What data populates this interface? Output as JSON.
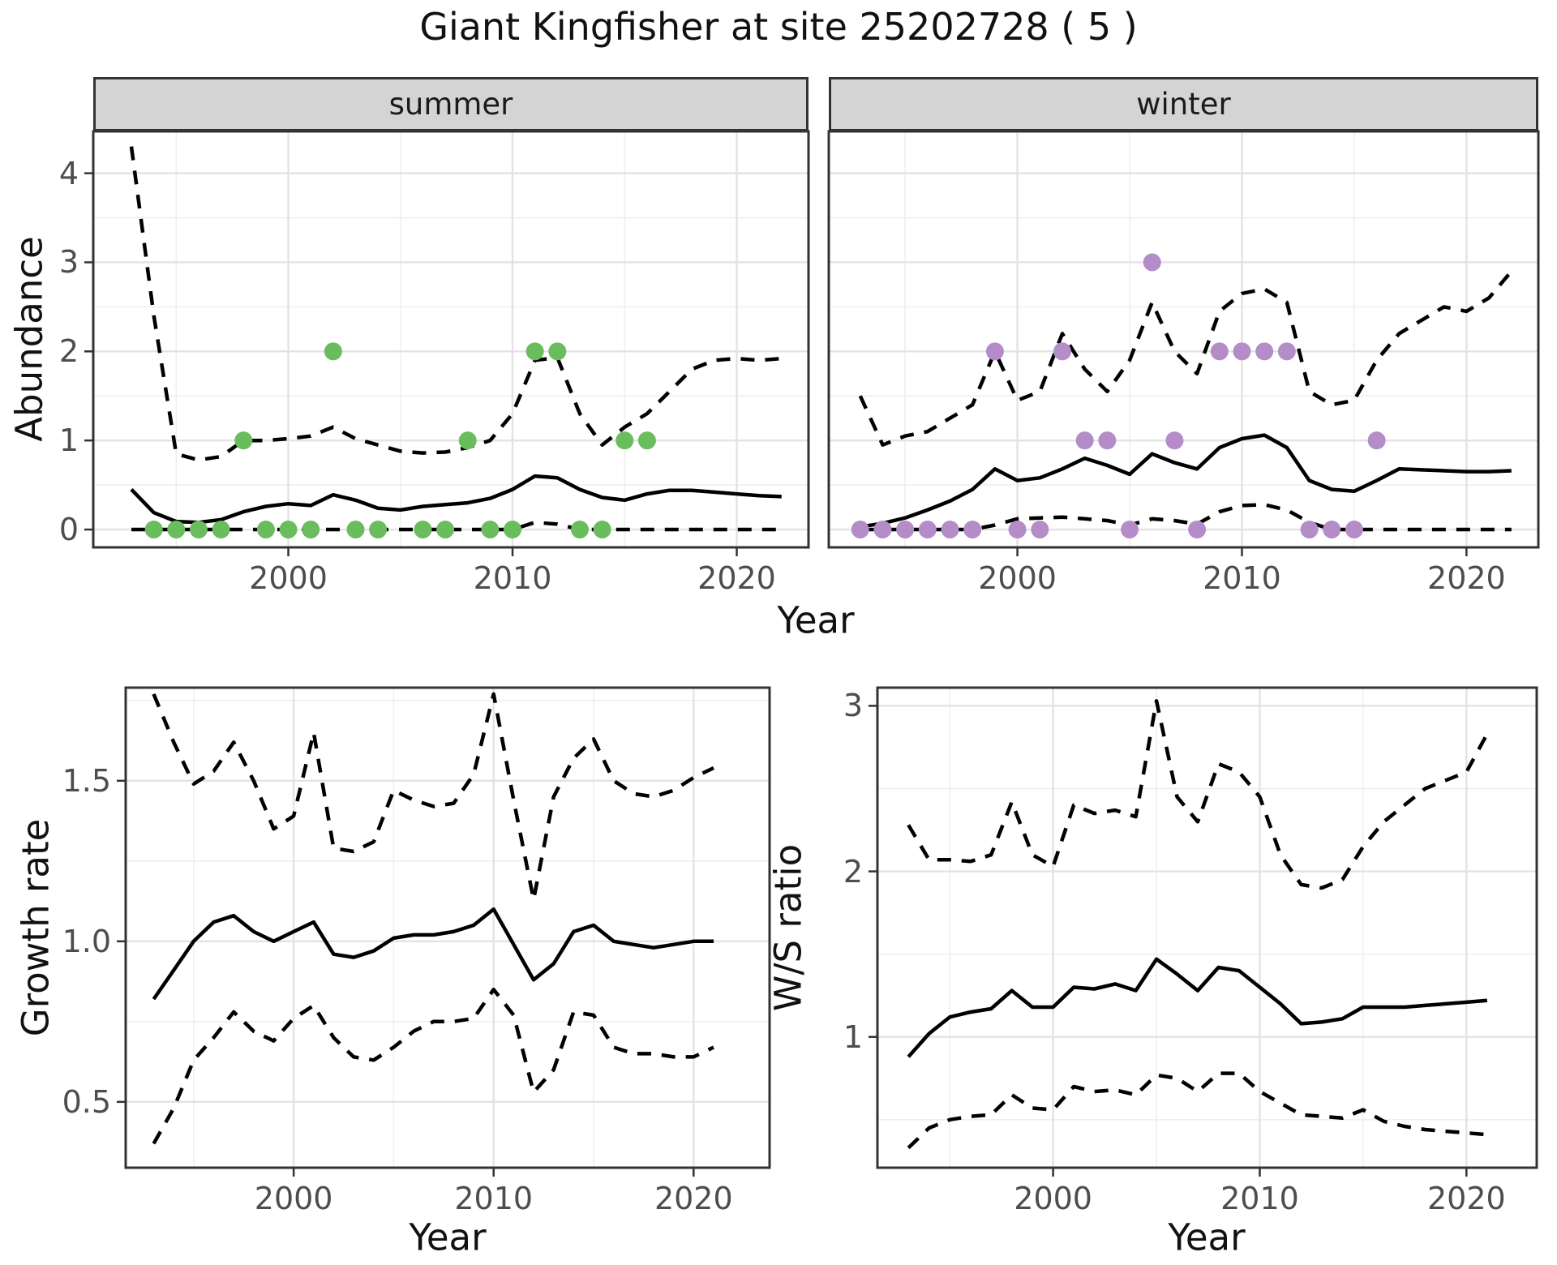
{
  "title": "Giant Kingfisher at site 25202728 ( 5 )",
  "colors": {
    "summer_points": "#6abd5c",
    "winter_points": "#b48cc8",
    "line": "#000000",
    "panel_border": "#333333",
    "grid_major": "#e3e3e3",
    "grid_minor": "#efefef",
    "strip_background": "#d4d4d4",
    "tick_label": "#4d4d4d"
  },
  "shared": {
    "xlabel": "Year",
    "abundance_ylabel": "Abundance"
  },
  "chart_data": [
    {
      "id": "abundance-summer",
      "type": "line",
      "facet": "summer",
      "ylabel": "Abundance",
      "xlabel": "Year",
      "x": [
        1993,
        1994,
        1995,
        1996,
        1997,
        1998,
        1999,
        2000,
        2001,
        2002,
        2003,
        2004,
        2005,
        2006,
        2007,
        2008,
        2009,
        2010,
        2011,
        2012,
        2013,
        2014,
        2015,
        2016,
        2017,
        2018,
        2019,
        2020,
        2021,
        2022
      ],
      "series": [
        {
          "name": "median",
          "style": "solid",
          "values": [
            0.45,
            0.19,
            0.09,
            0.08,
            0.11,
            0.2,
            0.26,
            0.29,
            0.27,
            0.39,
            0.33,
            0.24,
            0.22,
            0.26,
            0.28,
            0.3,
            0.35,
            0.45,
            0.6,
            0.58,
            0.45,
            0.36,
            0.33,
            0.4,
            0.44,
            0.44,
            0.42,
            0.4,
            0.38,
            0.37
          ]
        },
        {
          "name": "upper_ci",
          "style": "dashed",
          "values": [
            4.3,
            2.4,
            0.85,
            0.78,
            0.82,
            1.0,
            1.0,
            1.02,
            1.05,
            1.15,
            1.02,
            0.95,
            0.88,
            0.86,
            0.87,
            0.92,
            1.0,
            1.3,
            1.9,
            1.93,
            1.3,
            0.95,
            1.15,
            1.3,
            1.55,
            1.8,
            1.9,
            1.92,
            1.9,
            1.92
          ]
        },
        {
          "name": "lower_ci",
          "style": "dashed",
          "values": [
            0,
            0,
            0,
            0,
            0,
            0,
            0,
            0,
            0,
            0,
            0,
            0,
            0,
            0,
            0,
            0,
            0,
            0,
            0.08,
            0.06,
            0,
            0,
            0,
            0,
            0,
            0,
            0,
            0,
            0,
            0
          ]
        }
      ],
      "points": {
        "name": "observed-counts",
        "color": "#6abd5c",
        "data": [
          [
            1994,
            0
          ],
          [
            1995,
            0
          ],
          [
            1996,
            0
          ],
          [
            1997,
            0
          ],
          [
            1998,
            1
          ],
          [
            1999,
            0
          ],
          [
            2000,
            0
          ],
          [
            2001,
            0
          ],
          [
            2002,
            2
          ],
          [
            2003,
            0
          ],
          [
            2004,
            0
          ],
          [
            2006,
            0
          ],
          [
            2007,
            0
          ],
          [
            2008,
            1
          ],
          [
            2009,
            0
          ],
          [
            2010,
            0
          ],
          [
            2011,
            2
          ],
          [
            2012,
            2
          ],
          [
            2013,
            0
          ],
          [
            2014,
            0
          ],
          [
            2015,
            1
          ],
          [
            2016,
            1
          ]
        ]
      },
      "xlim": [
        1991.3,
        2023.2
      ],
      "ylim": [
        -0.2,
        4.47
      ],
      "x_ticks": [
        2000,
        2010,
        2020
      ],
      "x_tick_labels": [
        "2000",
        "2010",
        "2020"
      ],
      "y_ticks": [
        0,
        1,
        2,
        3,
        4
      ],
      "y_tick_labels": [
        "0",
        "1",
        "2",
        "3",
        "4"
      ],
      "x_minor": [
        1995,
        2005,
        2015
      ],
      "y_minor": [
        0.5,
        1.5,
        2.5,
        3.5
      ],
      "grid": true,
      "legend": "none"
    },
    {
      "id": "abundance-winter",
      "type": "line",
      "facet": "winter",
      "ylabel": "Abundance",
      "xlabel": "Year",
      "x": [
        1993,
        1994,
        1995,
        1996,
        1997,
        1998,
        1999,
        2000,
        2001,
        2002,
        2003,
        2004,
        2005,
        2006,
        2007,
        2008,
        2009,
        2010,
        2011,
        2012,
        2013,
        2014,
        2015,
        2016,
        2017,
        2018,
        2019,
        2020,
        2021,
        2022
      ],
      "series": [
        {
          "name": "median",
          "style": "solid",
          "values": [
            0.03,
            0.07,
            0.13,
            0.22,
            0.32,
            0.45,
            0.68,
            0.55,
            0.58,
            0.68,
            0.8,
            0.72,
            0.62,
            0.85,
            0.75,
            0.68,
            0.92,
            1.02,
            1.06,
            0.92,
            0.55,
            0.45,
            0.43,
            0.55,
            0.68,
            0.67,
            0.66,
            0.65,
            0.65,
            0.66
          ]
        },
        {
          "name": "upper_ci",
          "style": "dashed",
          "values": [
            1.5,
            0.95,
            1.05,
            1.1,
            1.25,
            1.4,
            2.0,
            1.45,
            1.55,
            2.2,
            1.8,
            1.55,
            1.9,
            2.55,
            2.0,
            1.75,
            2.45,
            2.65,
            2.7,
            2.55,
            1.55,
            1.4,
            1.45,
            1.9,
            2.2,
            2.35,
            2.5,
            2.45,
            2.6,
            2.9
          ]
        },
        {
          "name": "lower_ci",
          "style": "dashed",
          "values": [
            0,
            0,
            0,
            0,
            0,
            0,
            0.05,
            0.12,
            0.13,
            0.14,
            0.12,
            0.1,
            0.05,
            0.12,
            0.1,
            0.06,
            0.2,
            0.27,
            0.28,
            0.22,
            0.08,
            0,
            0,
            0,
            0,
            0,
            0,
            0,
            0,
            0
          ]
        }
      ],
      "points": {
        "name": "observed-counts",
        "color": "#b48cc8",
        "data": [
          [
            1993,
            0
          ],
          [
            1994,
            0
          ],
          [
            1995,
            0
          ],
          [
            1996,
            0
          ],
          [
            1997,
            0
          ],
          [
            1998,
            0
          ],
          [
            1999,
            2
          ],
          [
            2000,
            0
          ],
          [
            2001,
            0
          ],
          [
            2002,
            2
          ],
          [
            2003,
            1
          ],
          [
            2004,
            1
          ],
          [
            2005,
            0
          ],
          [
            2006,
            3
          ],
          [
            2007,
            1
          ],
          [
            2008,
            0
          ],
          [
            2009,
            2
          ],
          [
            2010,
            2
          ],
          [
            2011,
            2
          ],
          [
            2012,
            2
          ],
          [
            2013,
            0
          ],
          [
            2014,
            0
          ],
          [
            2015,
            0
          ],
          [
            2016,
            1
          ]
        ]
      },
      "xlim": [
        1991.6,
        2023.2
      ],
      "ylim": [
        -0.2,
        4.47
      ],
      "x_ticks": [
        2000,
        2010,
        2020
      ],
      "x_tick_labels": [
        "2000",
        "2010",
        "2020"
      ],
      "y_ticks": [
        0,
        1,
        2,
        3,
        4
      ],
      "y_tick_labels": [
        "0",
        "1",
        "2",
        "3",
        "4"
      ],
      "x_minor": [
        1995,
        2005,
        2015
      ],
      "y_minor": [
        0.5,
        1.5,
        2.5,
        3.5
      ],
      "grid": true,
      "legend": "none"
    },
    {
      "id": "growth-rate",
      "type": "line",
      "facet": "",
      "ylabel": "Growth rate",
      "xlabel": "Year",
      "x": [
        1993,
        1994,
        1995,
        1996,
        1997,
        1998,
        1999,
        2000,
        2001,
        2002,
        2003,
        2004,
        2005,
        2006,
        2007,
        2008,
        2009,
        2010,
        2011,
        2012,
        2013,
        2014,
        2015,
        2016,
        2017,
        2018,
        2019,
        2020,
        2021
      ],
      "series": [
        {
          "name": "median",
          "style": "solid",
          "values": [
            0.82,
            0.91,
            1.0,
            1.06,
            1.08,
            1.03,
            1.0,
            1.03,
            1.06,
            0.96,
            0.95,
            0.97,
            1.01,
            1.02,
            1.02,
            1.03,
            1.05,
            1.1,
            0.99,
            0.88,
            0.93,
            1.03,
            1.05,
            1.0,
            0.99,
            0.98,
            0.99,
            1.0,
            1.0
          ]
        },
        {
          "name": "upper_ci",
          "style": "dashed",
          "values": [
            1.77,
            1.62,
            1.49,
            1.53,
            1.62,
            1.5,
            1.35,
            1.39,
            1.65,
            1.29,
            1.28,
            1.31,
            1.47,
            1.44,
            1.42,
            1.43,
            1.52,
            1.77,
            1.44,
            1.13,
            1.45,
            1.57,
            1.63,
            1.5,
            1.46,
            1.45,
            1.47,
            1.51,
            1.54
          ]
        },
        {
          "name": "lower_ci",
          "style": "dashed",
          "values": [
            0.37,
            0.48,
            0.63,
            0.7,
            0.78,
            0.72,
            0.69,
            0.76,
            0.8,
            0.7,
            0.64,
            0.63,
            0.67,
            0.72,
            0.75,
            0.75,
            0.76,
            0.85,
            0.77,
            0.53,
            0.6,
            0.78,
            0.77,
            0.67,
            0.65,
            0.65,
            0.64,
            0.64,
            0.67
          ]
        }
      ],
      "xlim": [
        1991.6,
        2023.8
      ],
      "ylim": [
        0.295,
        1.79
      ],
      "x_ticks": [
        2000,
        2010,
        2020
      ],
      "x_tick_labels": [
        "2000",
        "2010",
        "2020"
      ],
      "y_ticks": [
        0.5,
        1.0,
        1.5
      ],
      "y_tick_labels": [
        "0.5",
        "1.0",
        "1.5"
      ],
      "x_minor": [
        1995,
        2005,
        2015
      ],
      "y_minor": [
        0.75,
        1.25,
        1.75
      ],
      "grid": true,
      "legend": "none"
    },
    {
      "id": "ws-ratio",
      "type": "line",
      "facet": "",
      "ylabel": "W/S ratio",
      "xlabel": "Year",
      "x": [
        1993,
        1994,
        1995,
        1996,
        1997,
        1998,
        1999,
        2000,
        2001,
        2002,
        2003,
        2004,
        2005,
        2006,
        2007,
        2008,
        2009,
        2010,
        2011,
        2012,
        2013,
        2014,
        2015,
        2016,
        2017,
        2018,
        2019,
        2020,
        2021
      ],
      "series": [
        {
          "name": "median",
          "style": "solid",
          "values": [
            0.88,
            1.02,
            1.12,
            1.15,
            1.17,
            1.28,
            1.18,
            1.18,
            1.3,
            1.29,
            1.32,
            1.28,
            1.47,
            1.38,
            1.28,
            1.42,
            1.4,
            1.3,
            1.2,
            1.08,
            1.09,
            1.11,
            1.18,
            1.18,
            1.18,
            1.19,
            1.2,
            1.21,
            1.22
          ]
        },
        {
          "name": "upper_ci",
          "style": "dashed",
          "values": [
            2.28,
            2.07,
            2.07,
            2.06,
            2.1,
            2.42,
            2.1,
            2.03,
            2.4,
            2.35,
            2.37,
            2.33,
            3.03,
            2.45,
            2.3,
            2.65,
            2.6,
            2.45,
            2.1,
            1.92,
            1.9,
            1.95,
            2.15,
            2.3,
            2.4,
            2.5,
            2.55,
            2.6,
            2.83
          ]
        },
        {
          "name": "lower_ci",
          "style": "dashed",
          "values": [
            0.33,
            0.45,
            0.5,
            0.52,
            0.53,
            0.65,
            0.57,
            0.56,
            0.7,
            0.67,
            0.68,
            0.65,
            0.77,
            0.75,
            0.67,
            0.78,
            0.78,
            0.67,
            0.6,
            0.53,
            0.52,
            0.51,
            0.56,
            0.49,
            0.46,
            0.44,
            0.43,
            0.42,
            0.41
          ]
        }
      ],
      "xlim": [
        1991.5,
        2023.4
      ],
      "ylim": [
        0.21,
        3.11
      ],
      "x_ticks": [
        2000,
        2010,
        2020
      ],
      "x_tick_labels": [
        "2000",
        "2010",
        "2020"
      ],
      "y_ticks": [
        1,
        2,
        3
      ],
      "y_tick_labels": [
        "1",
        "2",
        "3"
      ],
      "x_minor": [
        1995,
        2005,
        2015
      ],
      "y_minor": [
        0.5,
        1.5,
        2.5
      ],
      "grid": true,
      "legend": "none"
    }
  ]
}
